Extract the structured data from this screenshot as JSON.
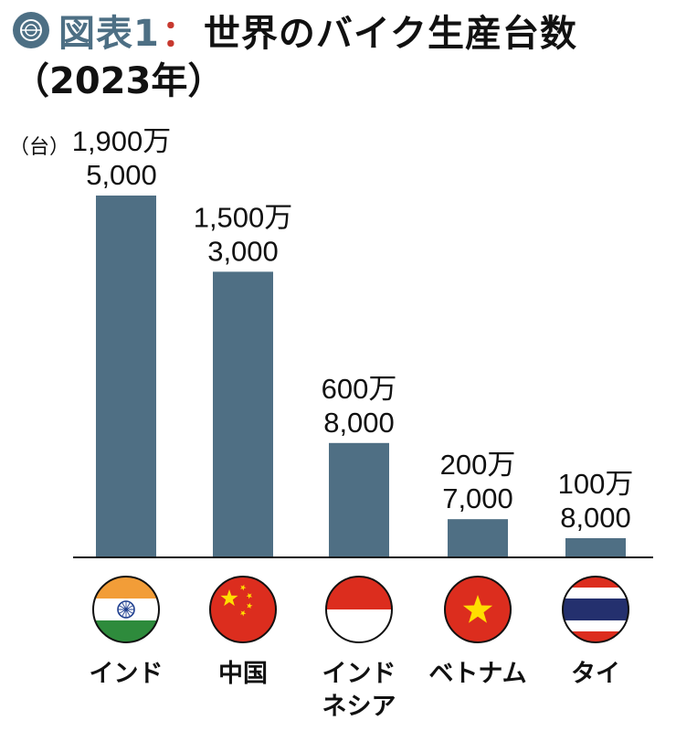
{
  "header": {
    "figure_label": "図表1",
    "colon": "：",
    "title": "世界のバイク生産台数",
    "subtitle": "（2023年）"
  },
  "chart_data": {
    "type": "bar",
    "ylabel": "（台）",
    "categories": [
      "インド",
      "中国",
      "インドネシア",
      "ベトナム",
      "タイ"
    ],
    "values": [
      19005000,
      15003000,
      6008000,
      2007000,
      1008000
    ],
    "value_labels": [
      [
        "1,900万",
        "5,000"
      ],
      [
        "1,500万",
        "3,000"
      ],
      [
        "600万",
        "8,000"
      ],
      [
        "200万",
        "7,000"
      ],
      [
        "100万",
        "8,000"
      ]
    ],
    "category_label_lines": [
      [
        "インド"
      ],
      [
        "中国"
      ],
      [
        "インド",
        "ネシア"
      ],
      [
        "ベトナム"
      ],
      [
        "タイ"
      ]
    ],
    "flags": [
      "india-flag-icon",
      "china-flag-icon",
      "indonesia-flag-icon",
      "vietnam-flag-icon",
      "thailand-flag-icon"
    ],
    "ylim": [
      0,
      19005000
    ],
    "grid": false,
    "bar_color": "#4f6f84"
  }
}
